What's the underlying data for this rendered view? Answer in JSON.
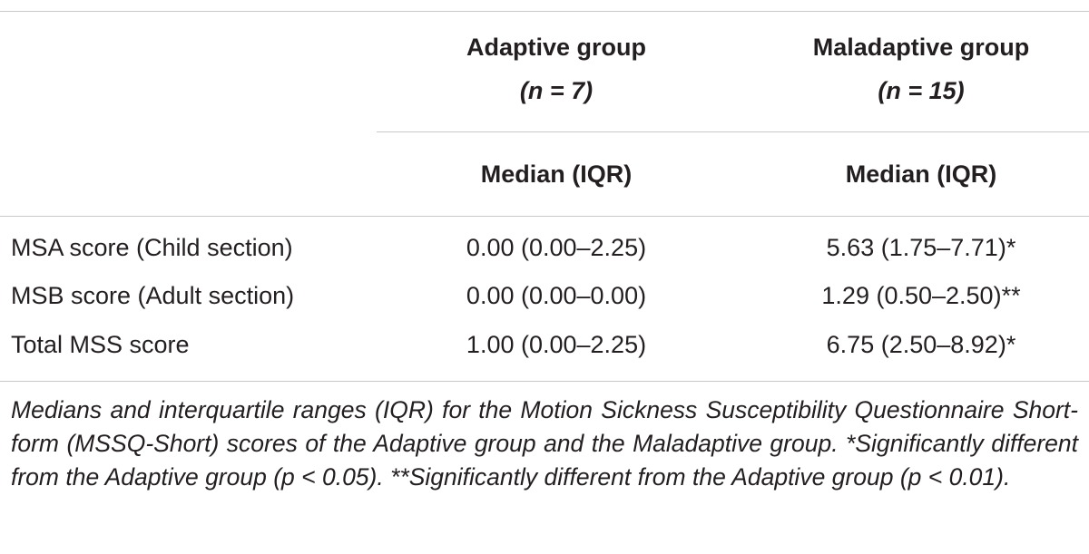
{
  "table": {
    "columns": [
      {
        "group": "Adaptive group",
        "n": "(n = 7)",
        "stat": "Median (IQR)"
      },
      {
        "group": "Maladaptive group",
        "n": "(n = 15)",
        "stat": "Median (IQR)"
      }
    ],
    "rows": [
      {
        "label": "MSA score (Child section)",
        "values": [
          "0.00 (0.00–2.25)",
          "5.63 (1.75–7.71)*"
        ]
      },
      {
        "label": "MSB score (Adult section)",
        "values": [
          "0.00 (0.00–0.00)",
          "1.29 (0.50–2.50)**"
        ]
      },
      {
        "label": "Total MSS score",
        "values": [
          "1.00 (0.00–2.25)",
          "6.75 (2.50–8.92)*"
        ]
      }
    ]
  },
  "caption": "Medians and interquartile ranges (IQR) for the Motion Sickness Susceptibility Questionnaire Short-form (MSSQ-Short) scores of the Adaptive group and the Maladaptive group. *Significantly different from the Adaptive group (p < 0.05). **Significantly different from the Adaptive group (p < 0.01)."
}
